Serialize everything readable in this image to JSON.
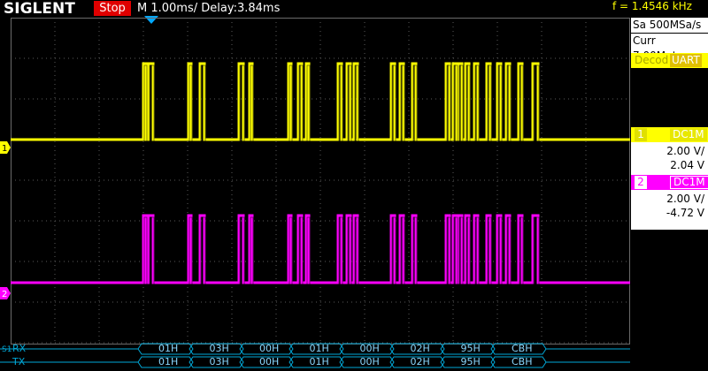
{
  "header": {
    "brand": "SIGLENT",
    "status": "Stop",
    "timebase": "M 1.00ms/ Delay:3.84ms",
    "frequency": "f = 1.4546 kHz"
  },
  "acquisition": {
    "sample_rate": "Sa 500MSa/s",
    "memory": "Curr 7.00Mpts"
  },
  "decode": {
    "label": "Decod",
    "protocol": "UART"
  },
  "channels": [
    {
      "number": "1",
      "coupling": "DC1M",
      "volts_div": "2.00 V/",
      "offset": "2.04 V",
      "color": "#ffff00"
    },
    {
      "number": "2",
      "coupling": "DC1M",
      "volts_div": "2.00 V/",
      "offset": "-4.72 V",
      "color": "#ff00ff"
    }
  ],
  "markers": {
    "ch1": "1",
    "ch2": "2",
    "bus": "S1"
  },
  "bus": {
    "rx_label": "RX",
    "tx_label": "TX",
    "rx": [
      "01H",
      "03H",
      "00H",
      "01H",
      "00H",
      "02H",
      "95H",
      "CBH"
    ],
    "tx": [
      "01H",
      "03H",
      "00H",
      "01H",
      "00H",
      "02H",
      "95H",
      "CBH"
    ]
  },
  "colors": {
    "ch1": "#ffff00",
    "ch2": "#ff00ff",
    "trigger": "#00a8ff",
    "stop": "#e00000",
    "bus": "#00a8d8"
  }
}
